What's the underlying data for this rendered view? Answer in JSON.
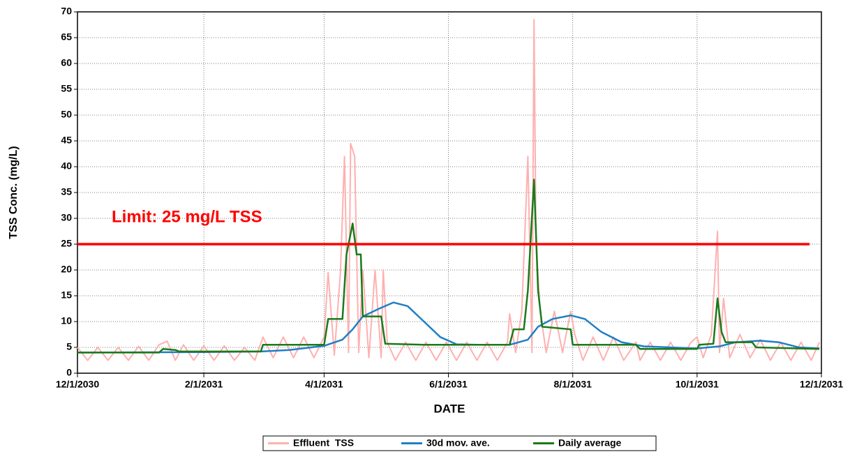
{
  "chart_data": {
    "type": "line",
    "y_label": "TSS Conc. (mg/L)",
    "x_label": "DATE",
    "xlim": [
      "12/1/2030",
      "12/1/2031"
    ],
    "xticks": [
      "12/1/2030",
      "2/1/2031",
      "4/1/2031",
      "6/1/2031",
      "8/1/2031",
      "10/1/2031",
      "12/1/2031"
    ],
    "ylim": [
      0,
      70
    ],
    "yticks": [
      0,
      5,
      10,
      15,
      20,
      25,
      30,
      35,
      40,
      45,
      50,
      55,
      60,
      65,
      70
    ],
    "grid": true,
    "legend": "bottom",
    "limit": {
      "value": 25,
      "label": "Limit: 25 mg/L TSS",
      "color": "#ff0000"
    },
    "series": [
      {
        "name": "Effluent  TSS",
        "color": "#ffb0b0",
        "x": [
          "12/1/2030",
          "12/6/2030",
          "12/11/2030",
          "12/16/2030",
          "12/21/2030",
          "12/26/2030",
          "12/31/2030",
          "1/5/2031",
          "1/10/2031",
          "1/14/2031",
          "1/18/2031",
          "1/22/2031",
          "1/27/2031",
          "2/1/2031",
          "2/6/2031",
          "2/11/2031",
          "2/16/2031",
          "2/21/2031",
          "2/26/2031",
          "3/2/2031",
          "3/7/2031",
          "3/12/2031",
          "3/17/2031",
          "3/22/2031",
          "3/27/2031",
          "4/1/2031",
          "4/3/2031",
          "4/6/2031",
          "4/9/2031",
          "4/11/2031",
          "4/13/2031",
          "4/14/2031",
          "4/16/2031",
          "4/18/2031",
          "4/20/2031",
          "4/23/2031",
          "4/26/2031",
          "4/29/2031",
          "4/30/2031",
          "5/2/2031",
          "5/6/2031",
          "5/11/2031",
          "5/16/2031",
          "5/21/2031",
          "5/26/2031",
          "5/31/2031",
          "6/5/2031",
          "6/10/2031",
          "6/15/2031",
          "6/20/2031",
          "6/25/2031",
          "6/30/2031",
          "7/1/2031",
          "7/4/2031",
          "7/7/2031",
          "7/10/2031",
          "7/12/2031",
          "7/13/2031",
          "7/14/2031",
          "7/16/2031",
          "7/19/2031",
          "7/23/2031",
          "7/27/2031",
          "7/31/2031",
          "8/2/2031",
          "8/6/2031",
          "8/11/2031",
          "8/16/2031",
          "8/21/2031",
          "8/26/2031",
          "9/1/2031",
          "9/3/2031",
          "9/8/2031",
          "9/13/2031",
          "9/18/2031",
          "9/23/2031",
          "9/28/2031",
          "10/1/2031",
          "10/4/2031",
          "10/8/2031",
          "10/11/2031",
          "10/12/2031",
          "10/14/2031",
          "10/17/2031",
          "10/22/2031",
          "10/27/2031",
          "11/1/2031",
          "11/6/2031",
          "11/11/2031",
          "11/16/2031",
          "11/21/2031",
          "11/26/2031",
          "11/30/2031"
        ],
        "values": [
          5,
          2.5,
          5,
          2.5,
          5,
          2.5,
          5.2,
          2.5,
          5.5,
          6.2,
          2.5,
          5.5,
          2.5,
          5.3,
          2.5,
          5.3,
          2.5,
          5,
          2.5,
          7,
          3,
          7,
          3,
          7,
          3,
          7,
          19.5,
          3.5,
          19.5,
          42,
          4,
          44.5,
          42,
          4,
          20,
          3,
          20,
          3,
          20,
          6,
          2.5,
          6,
          2.5,
          6,
          2.5,
          6,
          2.5,
          6,
          2.5,
          6,
          2.5,
          6,
          11.5,
          4,
          12,
          42,
          4,
          68.5,
          25,
          12,
          4,
          12,
          4,
          12,
          7.5,
          2.5,
          7,
          2.5,
          7,
          2.5,
          6,
          2.5,
          6,
          2.5,
          6,
          2.5,
          6,
          7,
          3,
          7.5,
          27.5,
          4,
          14.5,
          3,
          7.5,
          3,
          6.5,
          2.5,
          6,
          2.5,
          6,
          2.5,
          6
        ]
      },
      {
        "name": "30d mov. ave.",
        "color": "#1f7fc4",
        "x": [
          "12/1/2030",
          "2/1/2031",
          "3/1/2031",
          "3/15/2031",
          "4/1/2031",
          "4/10/2031",
          "4/15/2031",
          "4/20/2031",
          "4/28/2031",
          "5/5/2031",
          "5/12/2031",
          "5/20/2031",
          "5/28/2031",
          "6/5/2031",
          "6/15/2031",
          "7/1/2031",
          "7/10/2031",
          "7/15/2031",
          "7/22/2031",
          "7/31/2031",
          "8/7/2031",
          "8/15/2031",
          "8/25/2031",
          "9/5/2031",
          "10/1/2031",
          "10/12/2031",
          "10/20/2031",
          "11/1/2031",
          "11/10/2031",
          "11/20/2031",
          "11/30/2031"
        ],
        "values": [
          4,
          4.1,
          4.2,
          4.5,
          5.3,
          6.5,
          8.5,
          11,
          12.5,
          13.7,
          13,
          10,
          7,
          5.6,
          5.5,
          5.5,
          6.5,
          9,
          10.5,
          11.2,
          10.5,
          8,
          6,
          5.2,
          4.8,
          5.2,
          6,
          6.3,
          6,
          5,
          4.8
        ]
      },
      {
        "name": "Daily average",
        "color": "#1a7a1a",
        "x": [
          "12/1/2030",
          "1/10/2031",
          "1/12/2031",
          "1/18/2031",
          "1/20/2031",
          "3/1/2031",
          "3/2/2031",
          "4/1/2031",
          "4/3/2031",
          "4/10/2031",
          "4/12/2031",
          "4/15/2031",
          "4/17/2031",
          "4/19/2031",
          "4/20/2031",
          "4/29/2031",
          "5/1/2031",
          "5/20/2031",
          "7/1/2031",
          "7/3/2031",
          "7/8/2031",
          "7/10/2031",
          "7/13/2031",
          "7/15/2031",
          "7/17/2031",
          "7/31/2031",
          "8/1/2031",
          "9/1/2031",
          "9/3/2031",
          "10/1/2031",
          "10/2/2031",
          "10/9/2031",
          "10/11/2031",
          "10/13/2031",
          "10/15/2031",
          "10/28/2031",
          "10/30/2031",
          "11/30/2031"
        ],
        "values": [
          4,
          4,
          4.7,
          4.5,
          4.2,
          4.2,
          5.5,
          5.5,
          10.5,
          10.5,
          23,
          29,
          23,
          23,
          11,
          11,
          5.7,
          5.5,
          5.5,
          8.5,
          8.5,
          16,
          37.5,
          16,
          9,
          8.5,
          5.5,
          5.5,
          4.7,
          4.7,
          5.5,
          5.7,
          14.5,
          8,
          6,
          6,
          5,
          4.7
        ]
      }
    ]
  }
}
